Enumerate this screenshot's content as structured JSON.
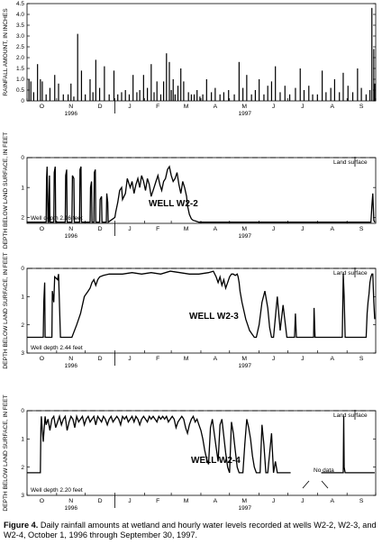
{
  "figure": {
    "caption_label": "Figure 4.",
    "caption_text": "Daily rainfall amounts at wetland and hourly water levels recorded at wells W2-2, W2-3, and W2-4, October 1, 1996 through September 30, 1997."
  },
  "chart_data": [
    {
      "id": "rainfall",
      "type": "bar",
      "ylabel": "RAINFALL AMOUNT, IN INCHES",
      "ylim": [
        0,
        4.5
      ],
      "yticks": [
        "0",
        "0.5",
        "1.0",
        "1.5",
        "2.0",
        "2.5",
        "3.0",
        "3.5",
        "4.0",
        "4.5"
      ],
      "month_labels": [
        "O",
        "N",
        "D",
        "J",
        "F",
        "M",
        "A",
        "M",
        "J",
        "J",
        "A",
        "S"
      ],
      "year_labels": [
        "1996",
        "1997"
      ],
      "series": [
        {
          "x_day": [
            2,
            4,
            7,
            11,
            14,
            16,
            20,
            24,
            29,
            33,
            38,
            43,
            46,
            49,
            53,
            57,
            61,
            66,
            69,
            72,
            76,
            81,
            86,
            91,
            95,
            99,
            103,
            107,
            111,
            115,
            118,
            122,
            126,
            130,
            133,
            136,
            140,
            143,
            146,
            149,
            151,
            153,
            155,
            158,
            161,
            164,
            169,
            172,
            175,
            178,
            181,
            184,
            188,
            193,
            197,
            202,
            206,
            211,
            217,
            222,
            226,
            230,
            235,
            239,
            243,
            248,
            252,
            256,
            260,
            265,
            270,
            275,
            281,
            286,
            290,
            295,
            299,
            304,
            309,
            313,
            318,
            322,
            327,
            331,
            336,
            341,
            346,
            350,
            355,
            359,
            361,
            363,
            364
          ],
          "inches": [
            1.0,
            0.9,
            0.4,
            1.7,
            1.0,
            0.9,
            0.3,
            0.6,
            1.2,
            0.8,
            0.3,
            0.3,
            0.8,
            0.2,
            3.1,
            1.4,
            0.3,
            1.0,
            0.4,
            1.9,
            0.6,
            1.6,
            0.3,
            1.4,
            0.3,
            0.4,
            0.5,
            0.3,
            1.2,
            0.4,
            0.5,
            1.2,
            0.6,
            1.7,
            0.4,
            0.9,
            0.3,
            0.9,
            2.2,
            1.8,
            0.5,
            1.0,
            0.3,
            0.7,
            1.5,
            0.9,
            0.4,
            0.3,
            0.3,
            0.5,
            0.2,
            0.3,
            1.0,
            0.4,
            0.6,
            0.3,
            0.4,
            0.5,
            0.3,
            1.8,
            0.6,
            1.2,
            0.3,
            0.5,
            1.0,
            0.3,
            0.7,
            0.9,
            1.6,
            0.4,
            0.7,
            0.3,
            0.6,
            1.5,
            0.5,
            0.7,
            0.3,
            0.3,
            1.4,
            0.4,
            0.6,
            1.0,
            0.4,
            1.3,
            0.7,
            0.4,
            1.5,
            0.6,
            0.3,
            0.5,
            4.3,
            2.4,
            0.8
          ]
        }
      ]
    },
    {
      "id": "w22",
      "type": "line",
      "ylabel": "DEPTH BELOW LAND SURFACE, IN FEET",
      "yticks": [
        "0",
        "1",
        "2"
      ],
      "ylim": [
        0,
        2.2
      ],
      "well_label": "WELL W2-2",
      "well_depth_label": "Well depth 2.16 feet",
      "land_surface_label": "Land surface",
      "month_labels": [
        "O",
        "N",
        "D",
        "J",
        "F",
        "M",
        "A",
        "M",
        "J",
        "J",
        "A",
        "S"
      ],
      "year_labels": [
        "1996",
        "1997"
      ],
      "series": [
        {
          "x_day": [
            0,
            20,
            20.5,
            21,
            22,
            22.5,
            23.5,
            24,
            28,
            28.5,
            29.5,
            30,
            40,
            40.5,
            41.5,
            42,
            47,
            47.5,
            49,
            49.5,
            55,
            55.5,
            56.5,
            57,
            66,
            66.5,
            67.5,
            68,
            70,
            70.5,
            71.5,
            72,
            76,
            76.5,
            78,
            78.5,
            83,
            83.5,
            84.5,
            85,
            92,
            93,
            95,
            97,
            99,
            100,
            103,
            105,
            108,
            110,
            112,
            114,
            116,
            118,
            120,
            122,
            124,
            126,
            128,
            130,
            133,
            135,
            137,
            139,
            141,
            143,
            145,
            147,
            149,
            151,
            153,
            155,
            157,
            159,
            161,
            163,
            165,
            167,
            168,
            170,
            172,
            174,
            176,
            178,
            180,
            182,
            190,
            200,
            220,
            300,
            360,
            361,
            362,
            363,
            364
          ],
          "depth_ft": [
            2.16,
            2.16,
            0.7,
            0.3,
            2.16,
            2.16,
            0.6,
            2.16,
            2.16,
            0.5,
            0.3,
            2.16,
            2.16,
            0.6,
            0.4,
            2.16,
            2.16,
            0.6,
            0.7,
            2.16,
            2.16,
            0.4,
            0.3,
            2.16,
            2.16,
            1.0,
            0.8,
            2.16,
            2.16,
            0.5,
            0.4,
            2.16,
            2.16,
            1.4,
            1.3,
            2.16,
            2.16,
            1.2,
            1.5,
            2.16,
            2.0,
            1.8,
            1.5,
            1.1,
            1.0,
            1.4,
            1.2,
            0.7,
            1.0,
            0.8,
            1.2,
            0.9,
            0.7,
            1.0,
            0.6,
            0.8,
            1.1,
            0.7,
            0.9,
            1.3,
            1.0,
            0.8,
            0.6,
            0.9,
            1.1,
            0.8,
            0.7,
            0.4,
            0.3,
            0.6,
            0.8,
            0.7,
            0.5,
            0.9,
            1.2,
            0.8,
            1.0,
            1.3,
            1.6,
            1.9,
            2.05,
            2.1,
            2.12,
            2.14,
            2.16,
            2.16,
            2.16,
            2.16,
            2.16,
            2.16,
            2.16,
            1.6,
            1.2,
            2.1,
            2.16
          ]
        }
      ]
    },
    {
      "id": "w23",
      "type": "line",
      "ylabel": "DEPTH BELOW LAND SURFACE, IN FEET",
      "yticks": [
        "0",
        "1",
        "2",
        "3"
      ],
      "ylim": [
        0,
        3
      ],
      "well_label": "WELL W2-3",
      "well_depth_label": "Well depth 2.44 feet",
      "land_surface_label": "Land surface",
      "month_labels": [
        "O",
        "N",
        "D",
        "J",
        "F",
        "M",
        "A",
        "M",
        "J",
        "J",
        "A",
        "S"
      ],
      "year_labels": [
        "1996",
        "1997"
      ],
      "series": [
        {
          "x_day": [
            0,
            17,
            17.5,
            18.5,
            19,
            26,
            26.5,
            28,
            29,
            32,
            33,
            35,
            36,
            42,
            47,
            52,
            56,
            58,
            60,
            62,
            64,
            66,
            68,
            70,
            72,
            74,
            76,
            80,
            86,
            92,
            100,
            110,
            120,
            130,
            140,
            150,
            160,
            170,
            180,
            190,
            195,
            198,
            200,
            202,
            204,
            206,
            208,
            210,
            212,
            214,
            216,
            218,
            220,
            221,
            222,
            223,
            225,
            227,
            229,
            231,
            233,
            235,
            238,
            240,
            243,
            246,
            249,
            252,
            254,
            256,
            258,
            262,
            265,
            268,
            272,
            280,
            281,
            282,
            300,
            300.5,
            301,
            301.5,
            330,
            331,
            332,
            333,
            334,
            355,
            356,
            357,
            358,
            359,
            360,
            361,
            362,
            363,
            364
          ],
          "depth_ft": [
            2.44,
            2.44,
            1.2,
            0.5,
            2.44,
            2.44,
            0.8,
            1.2,
            0.3,
            0.4,
            0.2,
            2.44,
            2.44,
            2.44,
            2.44,
            2.0,
            1.6,
            1.3,
            1.0,
            0.9,
            0.8,
            0.7,
            0.5,
            0.4,
            0.6,
            0.4,
            0.3,
            0.25,
            0.2,
            0.2,
            0.2,
            0.15,
            0.2,
            0.15,
            0.2,
            0.1,
            0.15,
            0.2,
            0.2,
            0.15,
            0.1,
            0.3,
            0.5,
            0.3,
            0.6,
            0.4,
            0.7,
            0.5,
            0.3,
            0.2,
            0.2,
            0.25,
            0.2,
            0.3,
            0.5,
            0.8,
            1.2,
            1.5,
            1.8,
            2.0,
            2.2,
            2.3,
            2.44,
            2.44,
            2.0,
            1.2,
            0.8,
            1.4,
            2.1,
            2.44,
            2.44,
            1.0,
            2.2,
            1.3,
            2.44,
            2.44,
            1.6,
            2.44,
            2.44,
            1.4,
            1.9,
            2.44,
            2.44,
            0.2,
            1.0,
            2.44,
            2.44,
            2.44,
            1.6,
            1.2,
            0.9,
            0.5,
            0.3,
            0.2,
            0.2,
            1.2,
            1.8
          ]
        }
      ]
    },
    {
      "id": "w24",
      "type": "line",
      "ylabel": "DEPTH BELOW LAND SURFACE, IN FEET",
      "yticks": [
        "0",
        "1",
        "2",
        "3"
      ],
      "ylim": [
        0,
        3
      ],
      "well_label": "WELL W2-4",
      "well_depth_label": "Well depth 2.20 feet",
      "land_surface_label": "Land surface",
      "no_data_label": "No data",
      "month_labels": [
        "O",
        "N",
        "D",
        "J",
        "F",
        "M",
        "A",
        "M",
        "J",
        "J",
        "A",
        "S"
      ],
      "year_labels": [
        "1996",
        "1997"
      ],
      "series": [
        {
          "x_day": [
            0,
            14,
            14.5,
            15,
            16,
            17,
            18,
            19,
            20,
            22,
            24,
            26,
            28,
            30,
            32,
            34,
            36,
            38,
            40,
            42,
            44,
            46,
            48,
            50,
            52,
            54,
            56,
            58,
            60,
            62,
            64,
            66,
            68,
            70,
            72,
            74,
            76,
            78,
            80,
            82,
            84,
            86,
            88,
            90,
            92,
            94,
            96,
            98,
            100,
            102,
            104,
            106,
            108,
            110,
            112,
            114,
            116,
            118,
            120,
            122,
            124,
            126,
            128,
            130,
            132,
            134,
            136,
            138,
            140,
            142,
            144,
            146,
            148,
            150,
            152,
            154,
            156,
            158,
            160,
            162,
            164,
            166,
            168,
            170,
            172,
            174,
            176,
            178,
            180,
            182,
            184,
            186,
            188,
            190,
            192,
            194,
            196,
            198,
            200,
            202,
            204,
            206,
            208,
            210,
            212,
            214,
            216,
            218,
            220,
            222,
            224,
            226,
            228,
            230,
            232,
            234,
            236,
            238,
            240,
            242,
            244,
            246,
            248,
            250,
            252,
            254,
            256,
            258,
            260,
            262,
            264,
            266,
            268,
            270,
            272,
            274,
            276,
            278
          ],
          "depth_ft": [
            2.2,
            2.2,
            0.6,
            0.2,
            0.7,
            1.1,
            0.6,
            0.2,
            0.5,
            0.3,
            0.7,
            0.3,
            0.2,
            0.6,
            0.4,
            0.2,
            0.5,
            0.3,
            0.2,
            0.7,
            0.4,
            0.2,
            0.3,
            0.6,
            0.2,
            0.4,
            0.3,
            0.2,
            0.5,
            0.3,
            0.2,
            0.4,
            0.3,
            0.2,
            0.5,
            0.2,
            0.3,
            0.4,
            0.2,
            0.3,
            0.5,
            0.3,
            0.2,
            0.4,
            0.3,
            0.2,
            0.3,
            0.5,
            0.2,
            0.3,
            0.2,
            0.4,
            0.3,
            0.2,
            0.4,
            0.2,
            0.3,
            0.5,
            0.3,
            0.2,
            0.3,
            0.4,
            0.2,
            0.3,
            0.2,
            0.3,
            0.4,
            0.2,
            0.3,
            0.2,
            0.3,
            0.2,
            0.4,
            0.3,
            0.2,
            0.3,
            0.6,
            0.4,
            0.3,
            0.2,
            0.3,
            0.6,
            0.8,
            0.5,
            0.3,
            0.2,
            0.4,
            0.3,
            0.5,
            0.7,
            1.0,
            1.4,
            1.7,
            1.9,
            0.6,
            0.3,
            0.8,
            1.3,
            1.8,
            0.5,
            0.3,
            0.9,
            1.5,
            2.0,
            2.2,
            0.4,
            0.8,
            1.4,
            2.0,
            2.2,
            2.2,
            2.2,
            1.2,
            0.3,
            0.6,
            1.0,
            1.6,
            2.0,
            2.2,
            2.2,
            2.2,
            0.5,
            1.2,
            2.2,
            2.2,
            1.5,
            0.8,
            2.2,
            1.8,
            2.2,
            2.2,
            2.2,
            2.2,
            2.2,
            2.2,
            2.2,
            2.2
          ]
        },
        {
          "x_day": [
            308,
            330,
            331,
            331.5,
            332,
            333,
            364
          ],
          "depth_ft": [
            2.2,
            2.2,
            2.2,
            0.2,
            2.0,
            2.2,
            2.2
          ]
        }
      ]
    }
  ]
}
